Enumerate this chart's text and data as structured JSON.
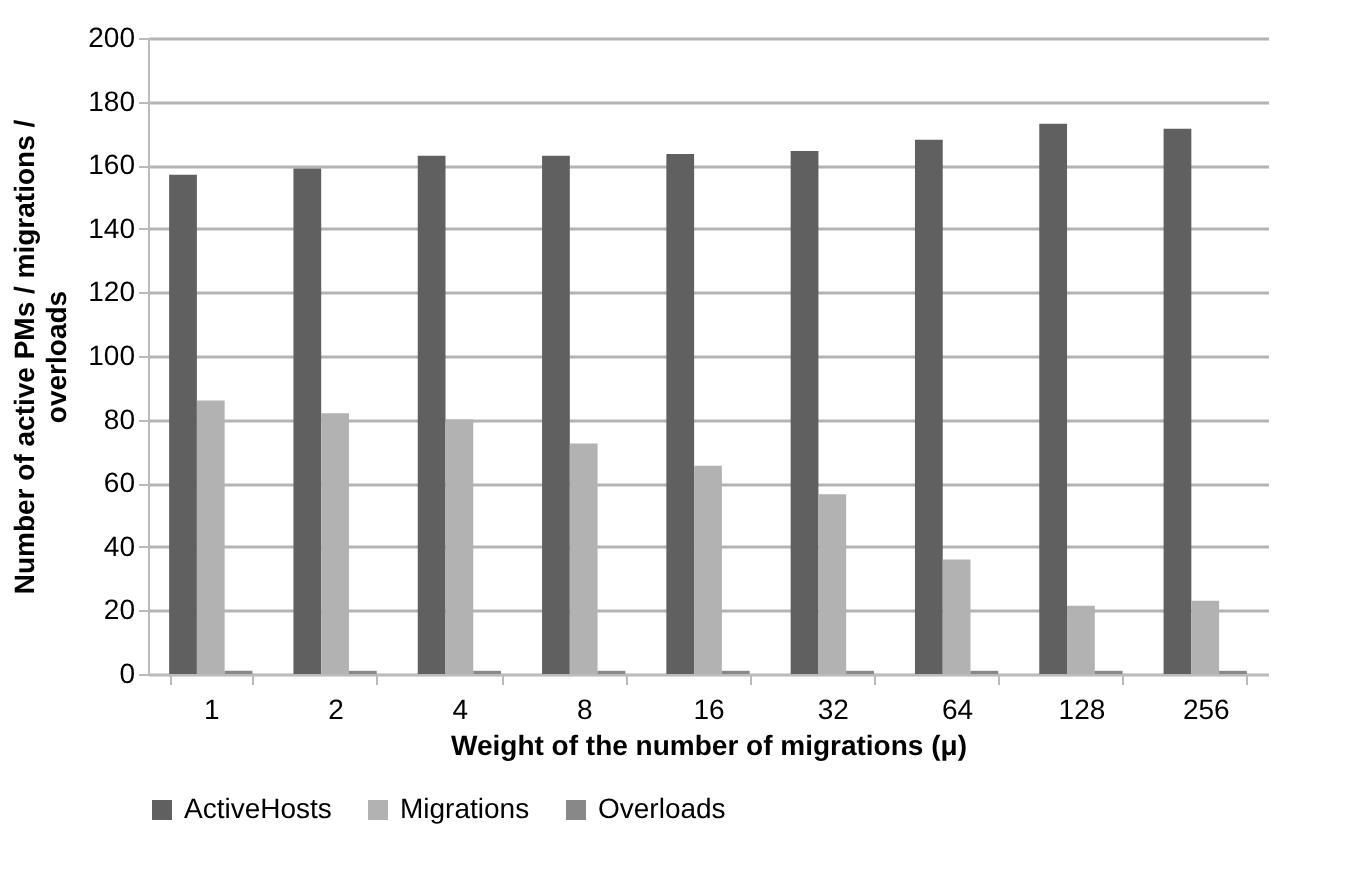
{
  "chart_data": {
    "type": "bar",
    "xlabel": "Weight of the number of migrations (μ)",
    "ylabel": "Number of active PMs / migrations / overloads",
    "categories": [
      "1",
      "2",
      "4",
      "8",
      "16",
      "32",
      "64",
      "128",
      "256"
    ],
    "series": [
      {
        "name": "ActiveHosts",
        "color": "#606060",
        "values": [
          157,
          159,
          163,
          163,
          163.5,
          164.5,
          168,
          173,
          171.5
        ]
      },
      {
        "name": "Migrations",
        "color": "#b2b2b2",
        "values": [
          86,
          82,
          80,
          72.5,
          65.5,
          56.5,
          36,
          21.5,
          23
        ]
      },
      {
        "name": "Overloads",
        "color": "#888888",
        "values": [
          1,
          1,
          1,
          1,
          1,
          1,
          1,
          1,
          1
        ]
      }
    ],
    "ylim": [
      0,
      200
    ],
    "yticks": [
      0,
      20,
      40,
      60,
      80,
      100,
      120,
      140,
      160,
      180,
      200
    ],
    "grid": "y",
    "legend": "bottom"
  }
}
